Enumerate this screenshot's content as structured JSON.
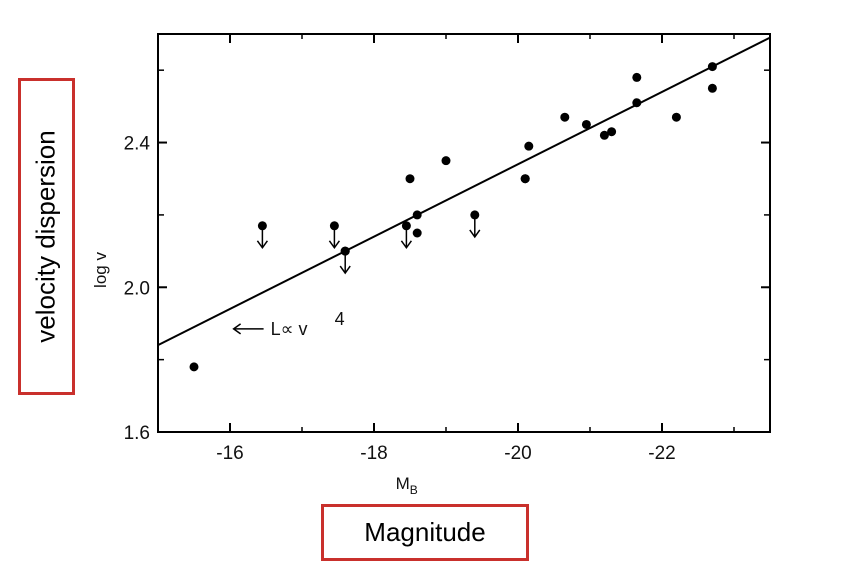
{
  "chart_data": {
    "type": "scatter",
    "title": "",
    "xlabel": "M",
    "xlabel_sub": "B",
    "ylabel": "log v",
    "xlim": [
      -15,
      -23.5
    ],
    "ylim": [
      1.6,
      2.7
    ],
    "x_axis_reversed": true,
    "xticks": [
      -16,
      -18,
      -20,
      -22
    ],
    "xtick_labels": [
      "-16",
      "-18",
      "-20",
      "-22"
    ],
    "yticks": [
      1.6,
      2.0,
      2.4
    ],
    "ytick_labels": [
      "1.6",
      "2.0",
      "2.4"
    ],
    "grid": false,
    "points": [
      {
        "x": -15.5,
        "y": 1.78
      },
      {
        "x": -17.6,
        "y": 2.1
      },
      {
        "x": -18.5,
        "y": 2.3
      },
      {
        "x": -18.6,
        "y": 2.2
      },
      {
        "x": -18.6,
        "y": 2.15
      },
      {
        "x": -19.0,
        "y": 2.35
      },
      {
        "x": -20.1,
        "y": 2.3
      },
      {
        "x": -20.1,
        "y": 2.3
      },
      {
        "x": -20.15,
        "y": 2.39
      },
      {
        "x": -20.65,
        "y": 2.47
      },
      {
        "x": -20.95,
        "y": 2.45
      },
      {
        "x": -21.2,
        "y": 2.42
      },
      {
        "x": -21.3,
        "y": 2.43
      },
      {
        "x": -21.65,
        "y": 2.58
      },
      {
        "x": -21.65,
        "y": 2.51
      },
      {
        "x": -22.2,
        "y": 2.47
      },
      {
        "x": -22.7,
        "y": 2.61
      },
      {
        "x": -22.7,
        "y": 2.55
      }
    ],
    "upper_limits": [
      {
        "x": -16.45,
        "y": 2.17
      },
      {
        "x": -17.45,
        "y": 2.17
      },
      {
        "x": -17.6,
        "y": 2.1
      },
      {
        "x": -18.45,
        "y": 2.17
      },
      {
        "x": -19.4,
        "y": 2.2
      }
    ],
    "fit_line": {
      "x": [
        -15.0,
        -23.5
      ],
      "y": [
        1.84,
        2.69
      ]
    },
    "annotation": {
      "text": "L∝ v",
      "superscript": "4",
      "arrow": "left",
      "x": -16.05,
      "y": 1.885
    }
  },
  "labels": {
    "y_box": "velocity dispersion",
    "x_box": "Magnitude"
  }
}
